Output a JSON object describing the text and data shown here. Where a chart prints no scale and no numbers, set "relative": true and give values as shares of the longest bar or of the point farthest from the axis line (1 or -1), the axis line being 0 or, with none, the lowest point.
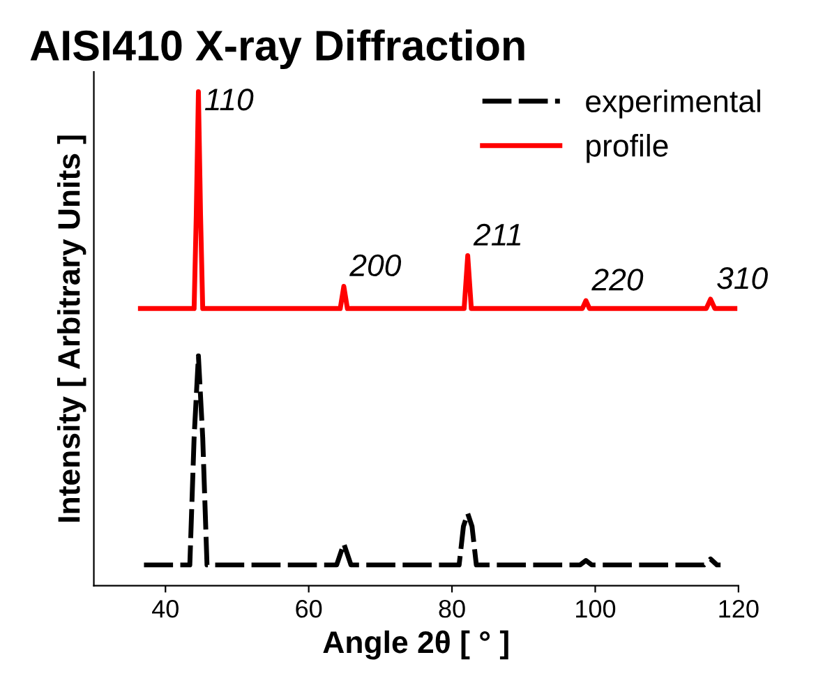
{
  "chart_data": {
    "type": "line",
    "title": "AISI410 X-ray Diffraction",
    "xlabel": "Angle 2θ [ ° ]",
    "ylabel": "Intensity [ Arbitrary Units ]",
    "relative": true,
    "xlim": [
      30,
      120
    ],
    "xticks": [
      40,
      60,
      80,
      100,
      120
    ],
    "grid": false,
    "legend": "top right",
    "series": [
      {
        "name": "experimental",
        "color": "#000000",
        "line_style": "dashed",
        "x": [
          37,
          43.4,
          44.0,
          44.6,
          45.2,
          45.8,
          63.9,
          64.9,
          65.9,
          81.0,
          81.6,
          82.2,
          82.8,
          83.4,
          97.9,
          98.7,
          99.5,
          115.2,
          116.1,
          117.0,
          117.5
        ],
        "values": [
          0.042,
          0.042,
          0.3,
          0.465,
          0.3,
          0.042,
          0.042,
          0.085,
          0.042,
          0.042,
          0.12,
          0.146,
          0.12,
          0.042,
          0.042,
          0.051,
          0.042,
          0.042,
          0.054,
          0.042,
          0.042
        ]
      },
      {
        "name": "profile",
        "color": "#ff0000",
        "line_style": "solid",
        "x": [
          36.5,
          44.0,
          44.3,
          44.6,
          44.9,
          45.2,
          64.4,
          64.9,
          65.4,
          81.7,
          82.2,
          82.7,
          98.2,
          98.7,
          99.2,
          115.5,
          116.1,
          116.7,
          119.5
        ],
        "values": [
          0.561,
          0.561,
          0.75,
          1.0,
          0.75,
          0.561,
          0.561,
          0.606,
          0.561,
          0.561,
          0.668,
          0.561,
          0.561,
          0.577,
          0.561,
          0.561,
          0.58,
          0.561,
          0.561
        ]
      }
    ],
    "annotations": [
      {
        "text": "110",
        "x": 44.6,
        "y": 1.0
      },
      {
        "text": "200",
        "x": 64.9,
        "y": 0.606
      },
      {
        "text": "211",
        "x": 82.2,
        "y": 0.668
      },
      {
        "text": "220",
        "x": 98.7,
        "y": 0.577
      },
      {
        "text": "310",
        "x": 116.1,
        "y": 0.58
      }
    ]
  }
}
